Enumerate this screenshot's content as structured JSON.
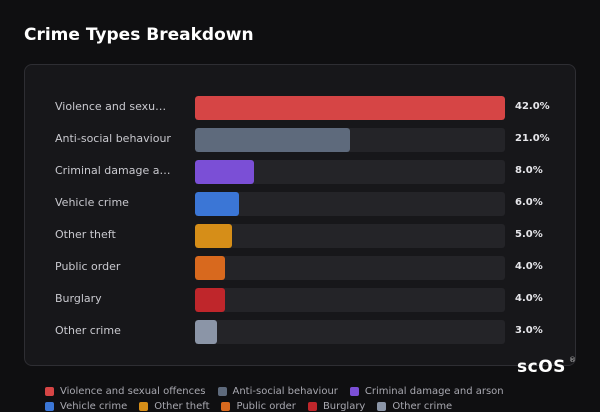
{
  "chart_data": {
    "type": "bar",
    "orientation": "horizontal",
    "title": "Crime Types Breakdown",
    "categories": [
      "Violence and sexual offences",
      "Anti-social behaviour",
      "Criminal damage and arson",
      "Vehicle crime",
      "Other theft",
      "Public order",
      "Burglary",
      "Other crime"
    ],
    "values": [
      42,
      21,
      8,
      6,
      5,
      4,
      4,
      3
    ],
    "value_labels": [
      "42.0%",
      "21.0%",
      "8.0%",
      "6.0%",
      "5.0%",
      "4.0%",
      "4.0%",
      "3.0%"
    ],
    "colors": [
      "#d64545",
      "#5e6a7c",
      "#7b4fd6",
      "#3b76d6",
      "#d68e18",
      "#d8691e",
      "#bf262b",
      "#8b95a7"
    ],
    "xlim": [
      0,
      42
    ],
    "legend": "bottom",
    "watermark": "scOS",
    "watermark_mark": "®"
  }
}
